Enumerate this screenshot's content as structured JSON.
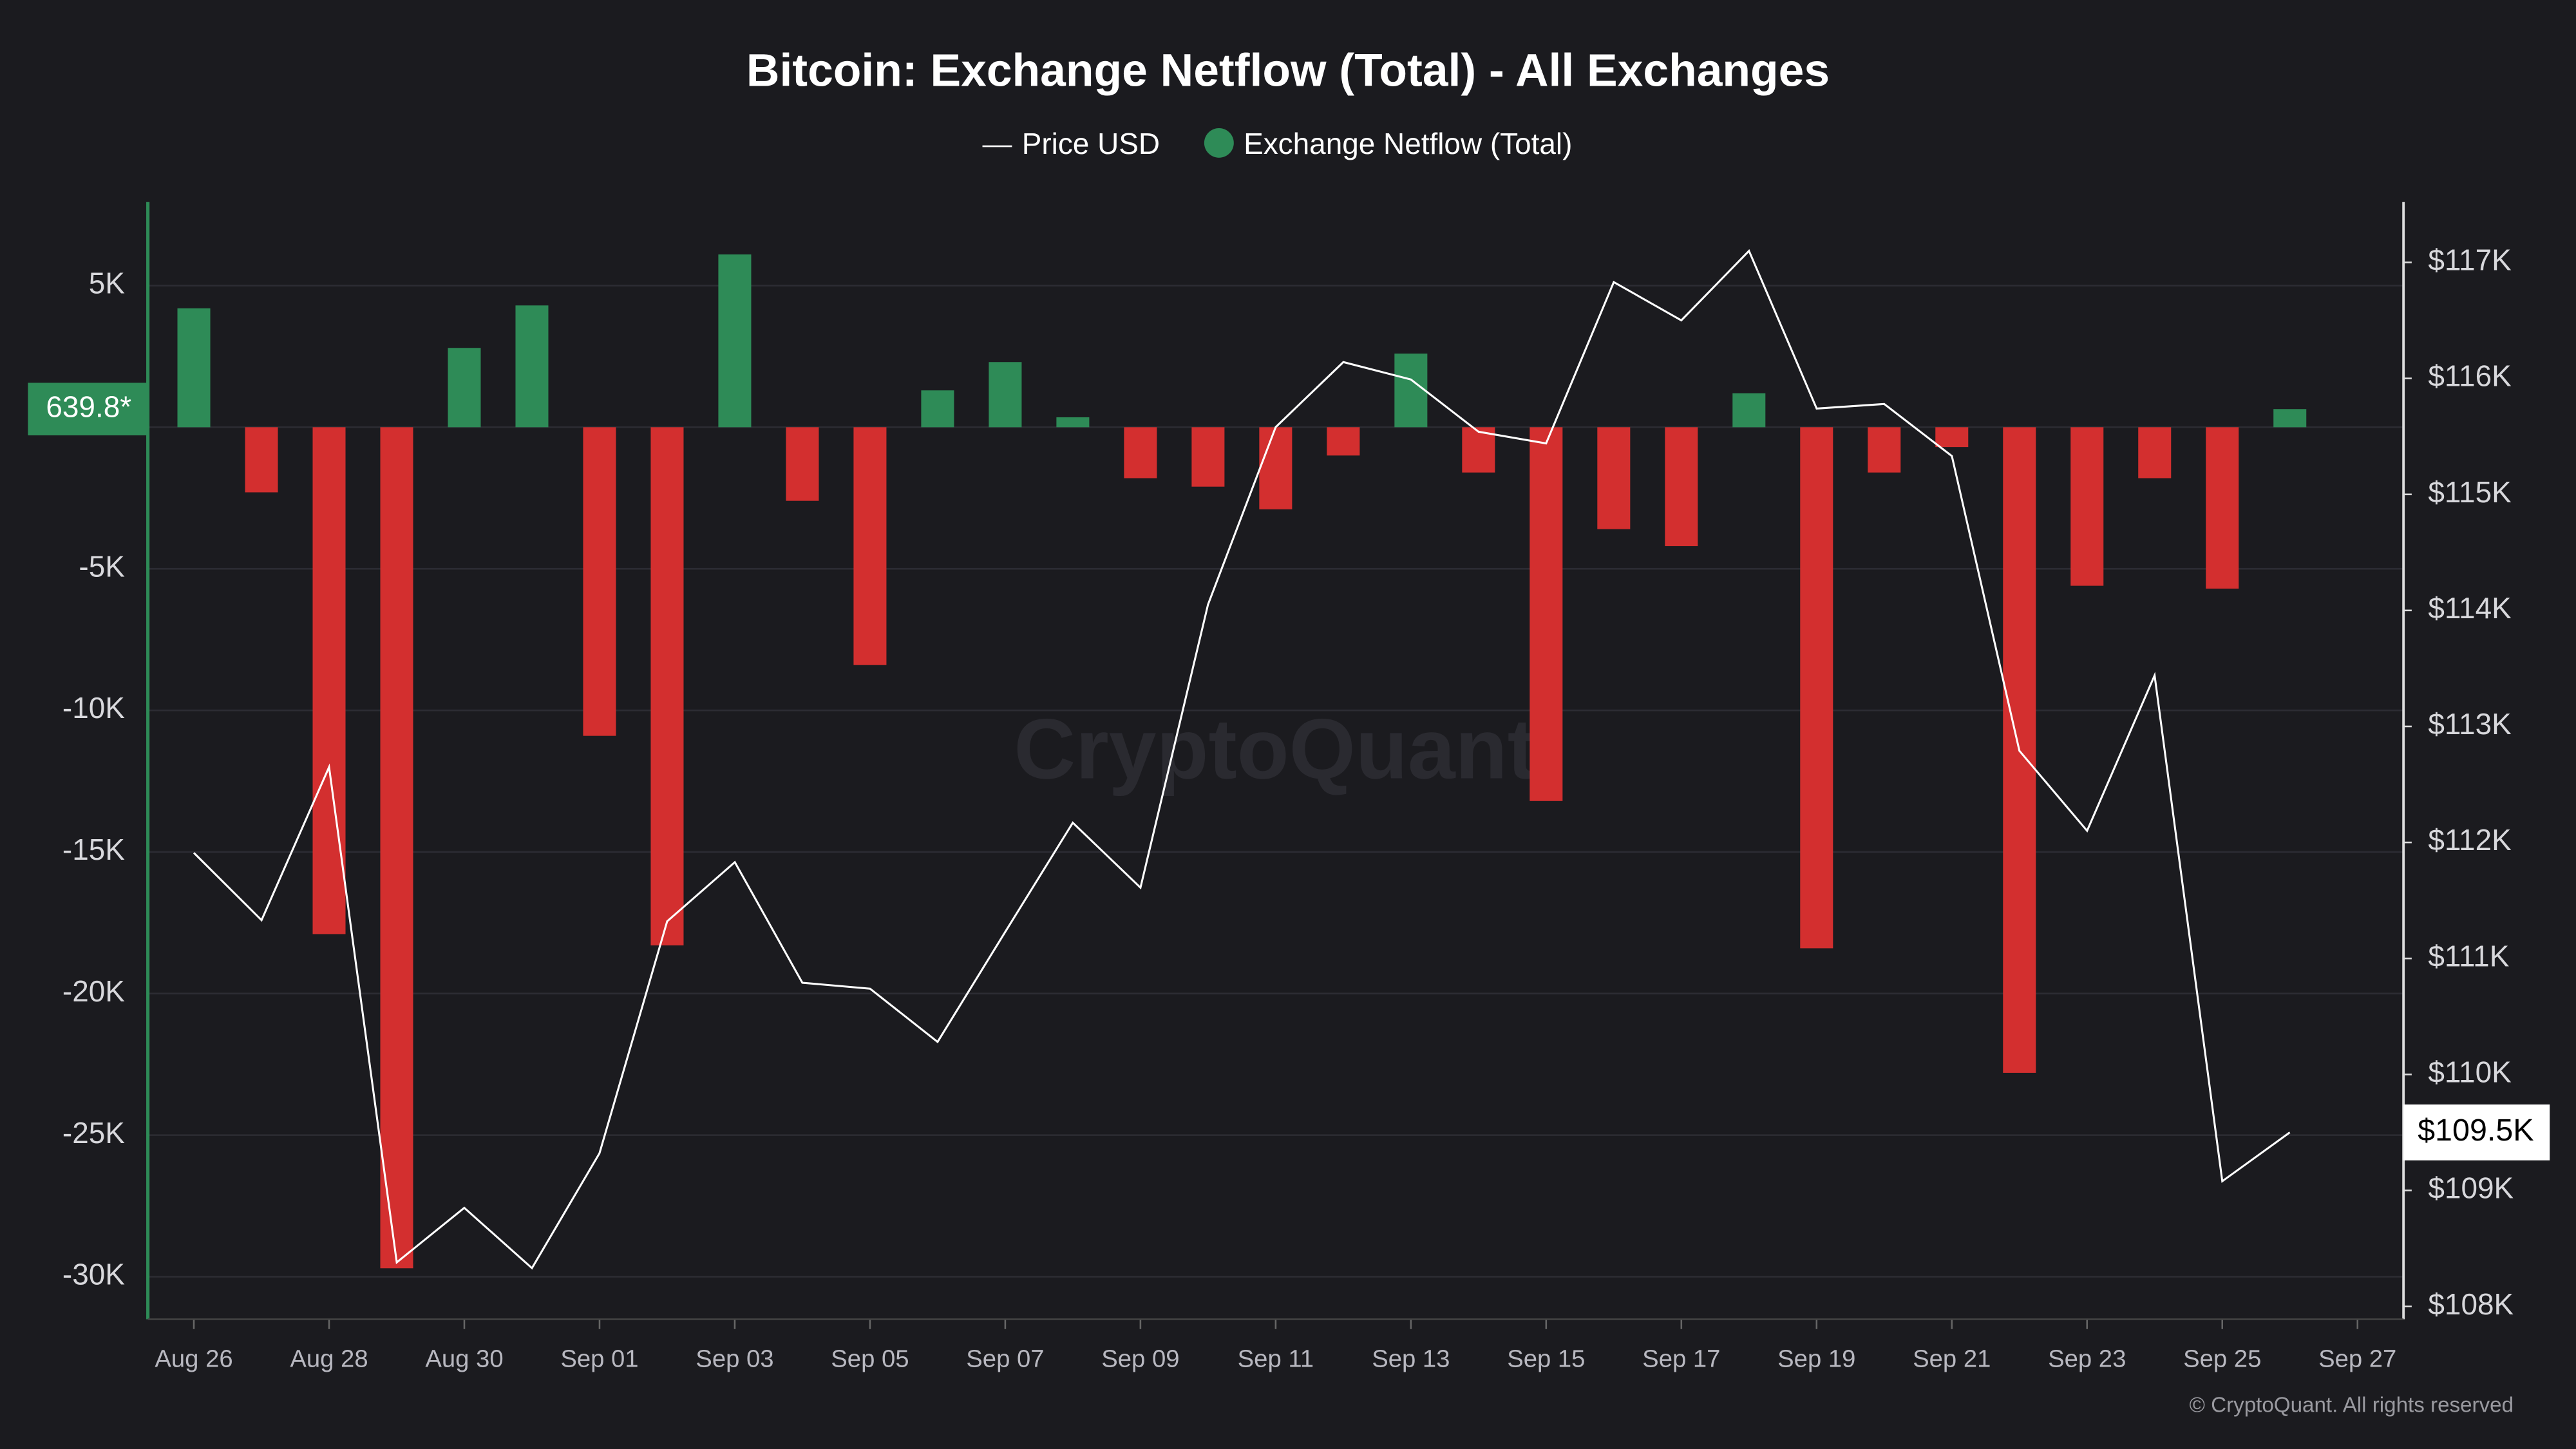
{
  "chart_data": {
    "type": "bar",
    "title": "Bitcoin: Exchange Netflow (Total) - All Exchanges",
    "watermark": "CryptoQuant",
    "copyright": "© CryptoQuant. All rights reserved",
    "categories": [
      "Aug 26",
      null,
      "Aug 28",
      null,
      "Aug 30",
      null,
      "Sep 01",
      null,
      "Sep 03",
      null,
      "Sep 05",
      null,
      "Sep 07",
      null,
      "Sep 09",
      null,
      "Sep 11",
      null,
      "Sep 13",
      null,
      "Sep 15",
      null,
      "Sep 17",
      null,
      "Sep 19",
      null,
      "Sep 21",
      null,
      "Sep 23",
      null,
      "Sep 25",
      null,
      "Sep 27"
    ],
    "series": [
      {
        "name": "Exchange Netflow (Total)",
        "type": "bar",
        "color": "#2e8b57",
        "negative_color": "#d32f2f",
        "values": [
          4200,
          -2300,
          -17900,
          -29700,
          2800,
          4300,
          -10900,
          -18300,
          6100,
          -2600,
          -8400,
          1300,
          2300,
          350,
          -1800,
          -2100,
          -2900,
          -1000,
          2600,
          -1600,
          -13200,
          -3600,
          -4200,
          1200,
          -18400,
          -1600,
          -700,
          -22800,
          -5600,
          -1800,
          -5700,
          639.8,
          null
        ],
        "current_label": "639.8*"
      },
      {
        "name": "Price USD",
        "type": "line",
        "axis": "y2",
        "color": "#ffffff",
        "values": [
          111910,
          111330,
          112650,
          108380,
          108850,
          108330,
          109320,
          111320,
          111830,
          110790,
          110740,
          110280,
          111230,
          112170,
          111610,
          114050,
          115580,
          116140,
          115990,
          115540,
          115440,
          116830,
          116500,
          117100,
          115740,
          115780,
          115330,
          112790,
          112100,
          113440,
          109080,
          109500,
          null
        ],
        "current_label": "$109.5K"
      }
    ],
    "ylim": [
      -31500,
      7950
    ],
    "yticks": [
      {
        "value": 5000,
        "label": "5K"
      },
      0,
      {
        "value": -5000,
        "label": "-5K"
      },
      {
        "value": -10000,
        "label": "-10K"
      },
      {
        "value": -15000,
        "label": "-15K"
      },
      {
        "value": -20000,
        "label": "-20K"
      },
      {
        "value": -25000,
        "label": "-25K"
      },
      {
        "value": -30000,
        "label": "-30K"
      }
    ],
    "y2lim": [
      107890,
      117520
    ],
    "y2ticks": [
      {
        "value": 108000,
        "label": "$108K"
      },
      {
        "value": 109000,
        "label": "$109K"
      },
      {
        "value": 110000,
        "label": "$110K"
      },
      {
        "value": 111000,
        "label": "$111K"
      },
      {
        "value": 112000,
        "label": "$112K"
      },
      {
        "value": 113000,
        "label": "$113K"
      },
      {
        "value": 114000,
        "label": "$114K"
      },
      {
        "value": 115000,
        "label": "$115K"
      },
      {
        "value": 116000,
        "label": "$116K"
      },
      {
        "value": 117000,
        "label": "$117K"
      }
    ],
    "grid": true
  }
}
